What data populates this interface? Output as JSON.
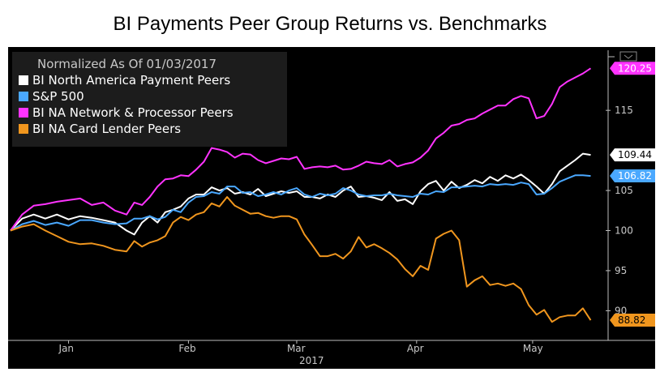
{
  "title": "BI Payments Peer Group Returns vs. Benchmarks",
  "chart_data": {
    "type": "line",
    "title": "BI Payments Peer Group Returns vs. Benchmarks",
    "subtitle": "Normalized As Of 01/03/2017",
    "xlabel": "2017",
    "ylabel": "",
    "x_tick_labels": [
      "Jan",
      "Feb",
      "Mar",
      "Apr",
      "May"
    ],
    "year_label": "2017",
    "y_ticks": [
      90,
      95,
      100,
      105,
      115
    ],
    "ylim": [
      86.5,
      122.5
    ],
    "x_range": [
      0,
      152
    ],
    "x_tick_days": [
      15,
      46,
      74,
      105,
      135
    ],
    "axis_position": "right",
    "legend_position": "top-left",
    "grid": false,
    "background": "#000000",
    "series": [
      {
        "name": "BI North America Payment Peers",
        "color": "#ffffff",
        "last_label": "109.44",
        "points": [
          [
            0,
            100
          ],
          [
            3,
            101.5
          ],
          [
            6,
            102
          ],
          [
            9,
            101.5
          ],
          [
            12,
            102
          ],
          [
            15,
            101.4
          ],
          [
            18,
            101.8
          ],
          [
            21,
            101.6
          ],
          [
            24,
            101.3
          ],
          [
            27,
            101
          ],
          [
            30,
            100
          ],
          [
            32,
            99.5
          ],
          [
            34,
            101
          ],
          [
            36,
            101.8
          ],
          [
            38,
            101
          ],
          [
            40,
            102.3
          ],
          [
            42,
            102.6
          ],
          [
            44,
            103
          ],
          [
            46,
            104
          ],
          [
            48,
            104.5
          ],
          [
            50,
            104.5
          ],
          [
            52,
            105.4
          ],
          [
            54,
            105
          ],
          [
            56,
            105.3
          ],
          [
            58,
            104.6
          ],
          [
            60,
            104.8
          ],
          [
            62,
            104.5
          ],
          [
            64,
            105.2
          ],
          [
            66,
            104.3
          ],
          [
            68,
            104.6
          ],
          [
            70,
            104.9
          ],
          [
            72,
            104.7
          ],
          [
            74,
            104.9
          ],
          [
            76,
            104.2
          ],
          [
            78,
            104.2
          ],
          [
            80,
            104
          ],
          [
            82,
            104.5
          ],
          [
            84,
            104.2
          ],
          [
            86,
            105
          ],
          [
            88,
            105.5
          ],
          [
            90,
            104.2
          ],
          [
            92,
            104.3
          ],
          [
            94,
            104.1
          ],
          [
            96,
            103.8
          ],
          [
            98,
            104.8
          ],
          [
            100,
            103.7
          ],
          [
            102,
            103.9
          ],
          [
            104,
            103.3
          ],
          [
            106,
            104.9
          ],
          [
            108,
            105.8
          ],
          [
            110,
            106.2
          ],
          [
            112,
            105
          ],
          [
            114,
            106.1
          ],
          [
            116,
            105.3
          ],
          [
            118,
            105.7
          ],
          [
            120,
            106.3
          ],
          [
            122,
            105.9
          ],
          [
            124,
            106.7
          ],
          [
            126,
            106.2
          ],
          [
            128,
            106.9
          ],
          [
            130,
            106.5
          ],
          [
            132,
            107
          ],
          [
            134,
            106.3
          ],
          [
            136,
            105.5
          ],
          [
            138,
            104.6
          ],
          [
            140,
            105.8
          ],
          [
            142,
            107.4
          ],
          [
            144,
            108.1
          ],
          [
            146,
            108.8
          ],
          [
            148,
            109.6
          ],
          [
            150,
            109.44
          ]
        ]
      },
      {
        "name": "S&P 500",
        "color": "#4aa8ff",
        "last_label": "106.82",
        "points": [
          [
            0,
            100
          ],
          [
            3,
            100.8
          ],
          [
            6,
            101.2
          ],
          [
            9,
            100.7
          ],
          [
            12,
            101
          ],
          [
            15,
            100.6
          ],
          [
            18,
            101.3
          ],
          [
            21,
            101.3
          ],
          [
            24,
            101
          ],
          [
            27,
            100.8
          ],
          [
            30,
            100.9
          ],
          [
            32,
            101.5
          ],
          [
            34,
            101.5
          ],
          [
            36,
            101.8
          ],
          [
            38,
            101.4
          ],
          [
            40,
            101.7
          ],
          [
            42,
            102.6
          ],
          [
            44,
            102.3
          ],
          [
            46,
            103.5
          ],
          [
            48,
            104.2
          ],
          [
            50,
            104.3
          ],
          [
            52,
            104.8
          ],
          [
            54,
            104.6
          ],
          [
            56,
            105.5
          ],
          [
            58,
            105.5
          ],
          [
            60,
            104.7
          ],
          [
            62,
            104.8
          ],
          [
            64,
            104.3
          ],
          [
            66,
            104.5
          ],
          [
            68,
            104.8
          ],
          [
            70,
            104.5
          ],
          [
            72,
            105
          ],
          [
            74,
            105.3
          ],
          [
            76,
            104.5
          ],
          [
            78,
            104.2
          ],
          [
            80,
            104.6
          ],
          [
            82,
            104.4
          ],
          [
            84,
            104.6
          ],
          [
            86,
            105.3
          ],
          [
            88,
            105
          ],
          [
            90,
            104.5
          ],
          [
            92,
            104.3
          ],
          [
            94,
            104.4
          ],
          [
            96,
            104.4
          ],
          [
            98,
            104.6
          ],
          [
            100,
            104.4
          ],
          [
            102,
            104.3
          ],
          [
            104,
            104.2
          ],
          [
            106,
            104.6
          ],
          [
            108,
            104.5
          ],
          [
            110,
            104.9
          ],
          [
            112,
            104.8
          ],
          [
            114,
            105.4
          ],
          [
            116,
            105.4
          ],
          [
            118,
            105.5
          ],
          [
            120,
            105.6
          ],
          [
            122,
            105.5
          ],
          [
            124,
            105.8
          ],
          [
            126,
            105.7
          ],
          [
            128,
            105.8
          ],
          [
            130,
            105.7
          ],
          [
            132,
            106
          ],
          [
            134,
            105.8
          ],
          [
            136,
            104.5
          ],
          [
            138,
            104.6
          ],
          [
            140,
            105.3
          ],
          [
            142,
            106.1
          ],
          [
            144,
            106.5
          ],
          [
            146,
            106.9
          ],
          [
            148,
            106.9
          ],
          [
            150,
            106.82
          ]
        ]
      },
      {
        "name": "BI NA Network & Processor Peers",
        "color": "#ff33ff",
        "last_label": "120.25",
        "points": [
          [
            0,
            100
          ],
          [
            3,
            102
          ],
          [
            6,
            103.1
          ],
          [
            9,
            103.3
          ],
          [
            12,
            103.6
          ],
          [
            15,
            103.8
          ],
          [
            18,
            104
          ],
          [
            21,
            103.2
          ],
          [
            24,
            103.5
          ],
          [
            27,
            102.5
          ],
          [
            30,
            102
          ],
          [
            32,
            103.5
          ],
          [
            34,
            103.2
          ],
          [
            36,
            104.2
          ],
          [
            38,
            105.5
          ],
          [
            40,
            106.4
          ],
          [
            42,
            106.5
          ],
          [
            44,
            106.9
          ],
          [
            46,
            106.8
          ],
          [
            48,
            107.6
          ],
          [
            50,
            108.6
          ],
          [
            52,
            110.3
          ],
          [
            54,
            110.1
          ],
          [
            56,
            109.8
          ],
          [
            58,
            109.1
          ],
          [
            60,
            109.6
          ],
          [
            62,
            109.5
          ],
          [
            64,
            108.8
          ],
          [
            66,
            108.4
          ],
          [
            68,
            108.7
          ],
          [
            70,
            109
          ],
          [
            72,
            108.9
          ],
          [
            74,
            109.2
          ],
          [
            76,
            107.7
          ],
          [
            78,
            107.9
          ],
          [
            80,
            108
          ],
          [
            82,
            107.9
          ],
          [
            84,
            108.1
          ],
          [
            86,
            107.6
          ],
          [
            88,
            107.7
          ],
          [
            90,
            108.1
          ],
          [
            92,
            108.6
          ],
          [
            94,
            108.4
          ],
          [
            96,
            108.3
          ],
          [
            98,
            108.8
          ],
          [
            100,
            108
          ],
          [
            102,
            108.3
          ],
          [
            104,
            108.5
          ],
          [
            106,
            109.1
          ],
          [
            108,
            110
          ],
          [
            110,
            111.5
          ],
          [
            112,
            112.2
          ],
          [
            114,
            113.1
          ],
          [
            116,
            113.3
          ],
          [
            118,
            113.8
          ],
          [
            120,
            114
          ],
          [
            122,
            114.6
          ],
          [
            124,
            115.1
          ],
          [
            126,
            115.6
          ],
          [
            128,
            115.6
          ],
          [
            130,
            116.4
          ],
          [
            132,
            116.8
          ],
          [
            134,
            116.5
          ],
          [
            136,
            114
          ],
          [
            138,
            114.3
          ],
          [
            140,
            115.8
          ],
          [
            142,
            117.9
          ],
          [
            144,
            118.6
          ],
          [
            146,
            119.1
          ],
          [
            148,
            119.6
          ],
          [
            150,
            120.25
          ]
        ]
      },
      {
        "name": "BI NA Card Lender Peers",
        "color": "#f0961e",
        "last_label": "88.82",
        "points": [
          [
            0,
            100
          ],
          [
            3,
            100.5
          ],
          [
            6,
            100.8
          ],
          [
            9,
            100
          ],
          [
            12,
            99.3
          ],
          [
            15,
            98.6
          ],
          [
            18,
            98.3
          ],
          [
            21,
            98.4
          ],
          [
            24,
            98.1
          ],
          [
            27,
            97.6
          ],
          [
            30,
            97.4
          ],
          [
            32,
            98.7
          ],
          [
            34,
            98
          ],
          [
            36,
            98.5
          ],
          [
            38,
            98.8
          ],
          [
            40,
            99.3
          ],
          [
            42,
            101
          ],
          [
            44,
            101.7
          ],
          [
            46,
            101.3
          ],
          [
            48,
            102
          ],
          [
            50,
            102.3
          ],
          [
            52,
            103.4
          ],
          [
            54,
            103
          ],
          [
            56,
            104.2
          ],
          [
            58,
            103.1
          ],
          [
            60,
            102.6
          ],
          [
            62,
            102.1
          ],
          [
            64,
            102.2
          ],
          [
            66,
            101.8
          ],
          [
            68,
            101.6
          ],
          [
            70,
            101.8
          ],
          [
            72,
            101.8
          ],
          [
            74,
            101.4
          ],
          [
            76,
            99.5
          ],
          [
            78,
            98.2
          ],
          [
            80,
            96.8
          ],
          [
            82,
            96.8
          ],
          [
            84,
            97.1
          ],
          [
            86,
            96.5
          ],
          [
            88,
            97.4
          ],
          [
            90,
            99.2
          ],
          [
            92,
            97.9
          ],
          [
            94,
            98.3
          ],
          [
            96,
            97.8
          ],
          [
            98,
            97.2
          ],
          [
            100,
            96.4
          ],
          [
            102,
            95.2
          ],
          [
            104,
            94.3
          ],
          [
            106,
            95.6
          ],
          [
            108,
            95.1
          ],
          [
            110,
            99
          ],
          [
            112,
            99.6
          ],
          [
            114,
            100
          ],
          [
            116,
            98.8
          ],
          [
            118,
            93
          ],
          [
            120,
            93.8
          ],
          [
            122,
            94.3
          ],
          [
            124,
            93.2
          ],
          [
            126,
            93.4
          ],
          [
            128,
            93.1
          ],
          [
            130,
            93.4
          ],
          [
            132,
            92.7
          ],
          [
            134,
            90.7
          ],
          [
            136,
            89.5
          ],
          [
            138,
            90.1
          ],
          [
            140,
            88.6
          ],
          [
            142,
            89.2
          ],
          [
            144,
            89.4
          ],
          [
            146,
            89.4
          ],
          [
            148,
            90.3
          ],
          [
            150,
            88.82
          ]
        ]
      }
    ]
  }
}
